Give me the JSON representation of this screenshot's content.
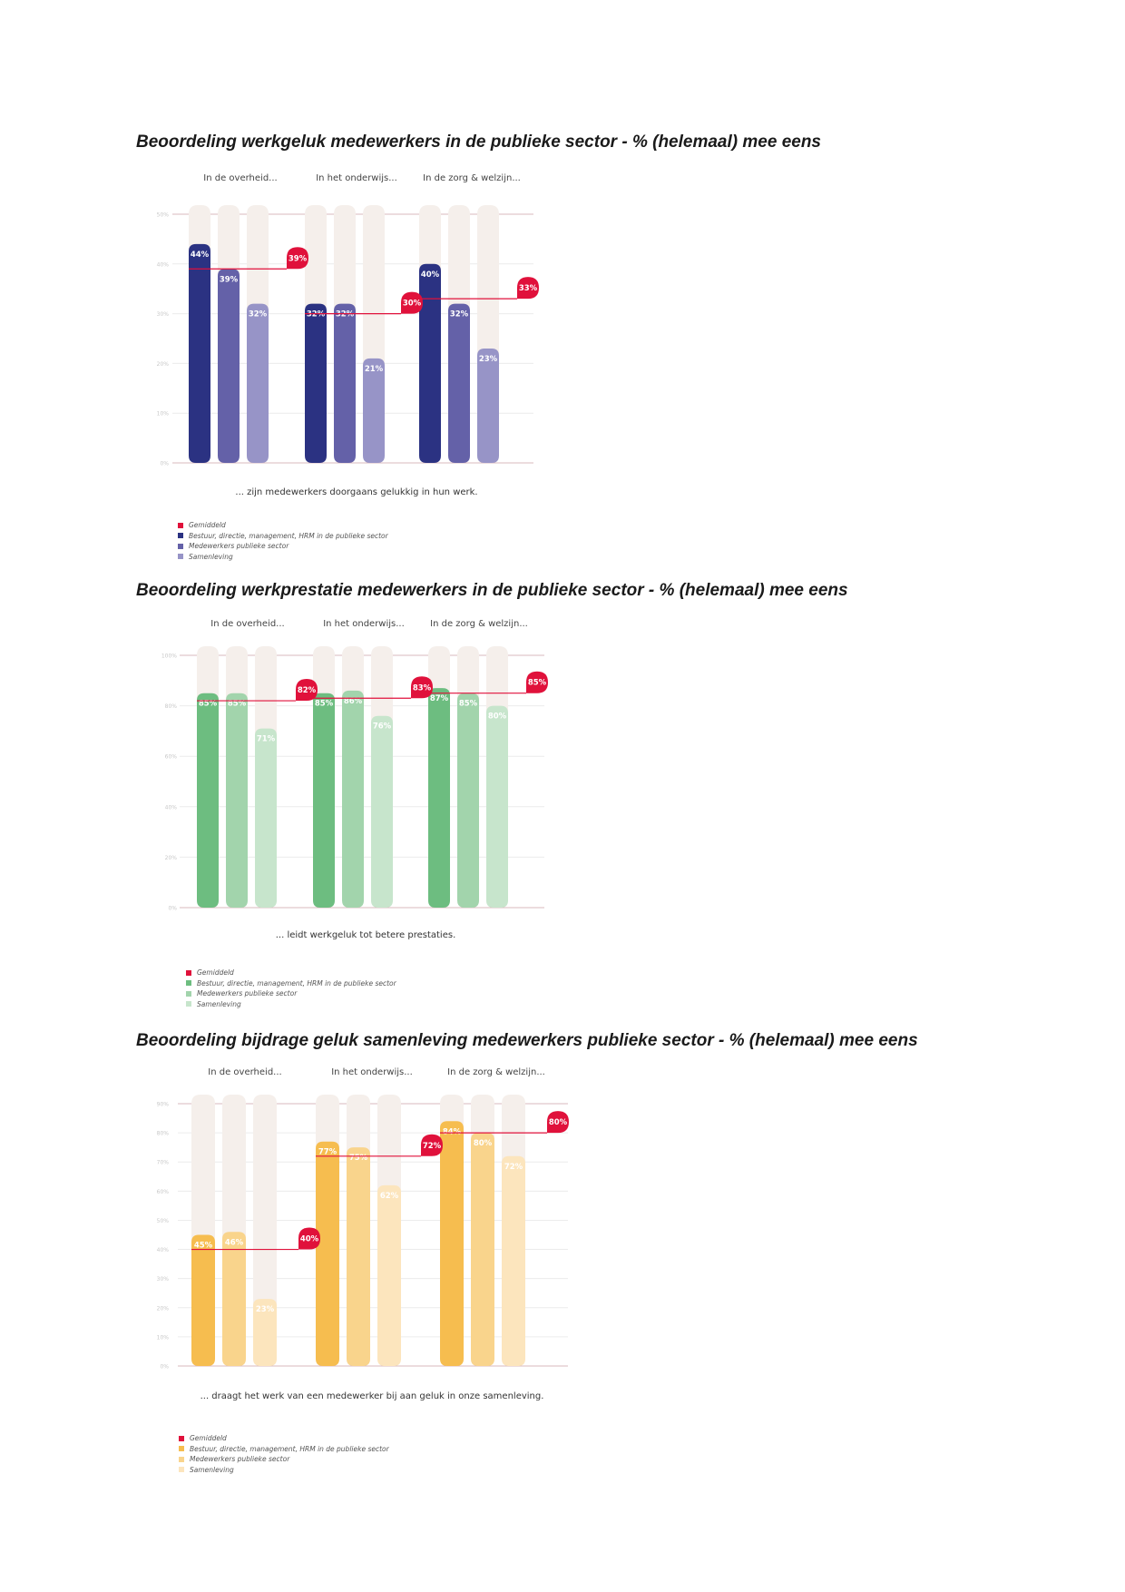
{
  "chart_data": [
    {
      "type": "bar",
      "title": "Beoordeling werkgeluk medewerkers in de publieke sector - % (helemaal) mee eens",
      "groups": [
        "In de overheid...",
        "In het onderwijs...",
        "In de zorg & welzijn..."
      ],
      "series": [
        {
          "name": "Bestuur, directie, management, HRM in de publieke sector",
          "values": [
            44,
            32,
            40
          ],
          "labels": [
            "44%",
            "32%",
            "40%"
          ],
          "color": "#2b3282"
        },
        {
          "name": "Medewerkers publieke sector",
          "values": [
            39,
            32,
            32
          ],
          "labels": [
            "39%",
            "32%",
            "32%"
          ],
          "color": "#6461a8"
        },
        {
          "name": "Samenleving",
          "values": [
            32,
            21,
            23
          ],
          "labels": [
            "32%",
            "21%",
            "23%"
          ],
          "color": "#9794c7"
        }
      ],
      "average": {
        "name": "Gemiddeld",
        "values": [
          39,
          30,
          33
        ],
        "labels": [
          "39%",
          "30%",
          "33%"
        ],
        "color": "#e0113b"
      },
      "yticks": [
        "50%",
        "40%",
        "30%",
        "20%",
        "10%",
        "0%"
      ],
      "ylim": [
        0,
        50
      ],
      "caption": "... zijn medewerkers doorgaans gelukkig in hun werk.",
      "legend": [
        "Gemiddeld",
        "Bestuur, directie, management, HRM in de publieke sector",
        "Medewerkers publieke sector",
        "Samenleving"
      ],
      "legend_colors": [
        "#e0113b",
        "#2b3282",
        "#6461a8",
        "#9794c7"
      ],
      "legend_position": "bottom-left",
      "grid": true
    },
    {
      "type": "bar",
      "title": "Beoordeling werkprestatie medewerkers in de publieke sector - % (helemaal) mee eens",
      "groups": [
        "In de overheid...",
        "In het onderwijs...",
        "In de zorg & welzijn..."
      ],
      "series": [
        {
          "name": "Bestuur, directie, management, HRM in de publieke sector",
          "values": [
            85,
            85,
            87
          ],
          "labels": [
            "85%",
            "85%",
            "87%"
          ],
          "color": "#6dbd80"
        },
        {
          "name": "Medewerkers publieke sector",
          "values": [
            85,
            86,
            85
          ],
          "labels": [
            "85%",
            "86%",
            "85%"
          ],
          "color": "#a2d4ac"
        },
        {
          "name": "Samenleving",
          "values": [
            71,
            76,
            80
          ],
          "labels": [
            "71%",
            "76%",
            "80%"
          ],
          "color": "#c7e5cc"
        }
      ],
      "average": {
        "name": "Gemiddeld",
        "values": [
          82,
          83,
          85
        ],
        "labels": [
          "82%",
          "83%",
          "85%"
        ],
        "color": "#e0113b"
      },
      "yticks": [
        "100%",
        "80%",
        "60%",
        "40%",
        "20%",
        "0%"
      ],
      "ylim": [
        0,
        100
      ],
      "caption": "... leidt werkgeluk tot betere prestaties.",
      "legend": [
        "Gemiddeld",
        "Bestuur, directie, management, HRM in de publieke sector",
        "Medewerkers publieke sector",
        "Samenleving"
      ],
      "legend_colors": [
        "#e0113b",
        "#6dbd80",
        "#a2d4ac",
        "#c7e5cc"
      ],
      "legend_position": "bottom-left",
      "grid": true
    },
    {
      "type": "bar",
      "title": "Beoordeling bijdrage geluk samenleving medewerkers publieke sector - % (helemaal) mee eens",
      "groups": [
        "In de overheid...",
        "In het onderwijs...",
        "In de zorg & welzijn..."
      ],
      "series": [
        {
          "name": "Bestuur, directie, management, HRM in de publieke sector",
          "values": [
            45,
            77,
            84
          ],
          "labels": [
            "45%",
            "77%",
            "84%"
          ],
          "color": "#f6bd4f"
        },
        {
          "name": "Medewerkers publieke sector",
          "values": [
            46,
            75,
            80
          ],
          "labels": [
            "46%",
            "75%",
            "80%"
          ],
          "color": "#f9d48c"
        },
        {
          "name": "Samenleving",
          "values": [
            23,
            62,
            72
          ],
          "labels": [
            "23%",
            "62%",
            "72%"
          ],
          "color": "#fce5bd"
        }
      ],
      "average": {
        "name": "Gemiddeld",
        "values": [
          40,
          72,
          80
        ],
        "labels": [
          "40%",
          "72%",
          "80%"
        ],
        "color": "#e0113b"
      },
      "yticks": [
        "90%",
        "80%",
        "70%",
        "60%",
        "50%",
        "40%",
        "30%",
        "20%",
        "10%",
        "0%"
      ],
      "ylim": [
        0,
        90
      ],
      "caption": "... draagt het werk van een medewerker bij aan geluk in onze samenleving.",
      "legend": [
        "Gemiddeld",
        "Bestuur, directie, management, HRM in de publieke sector",
        "Medewerkers publieke sector",
        "Samenleving"
      ],
      "legend_colors": [
        "#e0113b",
        "#f6bd4f",
        "#f9d48c",
        "#fce5bd"
      ],
      "legend_position": "bottom-left",
      "grid": true
    }
  ]
}
